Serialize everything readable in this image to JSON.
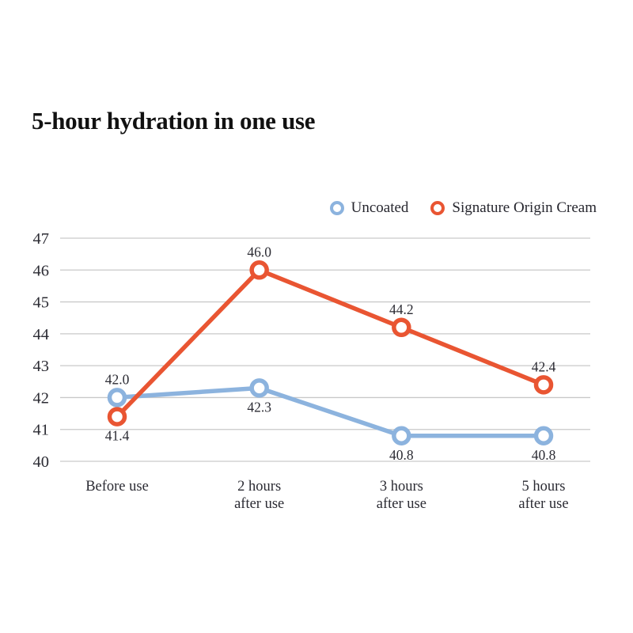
{
  "header": {
    "title": "5-hour hydration in one use"
  },
  "chart_data": {
    "type": "line",
    "title": "5-hour hydration in one use",
    "categories": [
      "Before use",
      "2 hours after use",
      "3 hours after use",
      "5 hours after use"
    ],
    "category_lines": [
      [
        "Before use"
      ],
      [
        "2 hours",
        "after use"
      ],
      [
        "3 hours",
        "after use"
      ],
      [
        "5 hours",
        "after use"
      ]
    ],
    "series": [
      {
        "name": "Uncoated",
        "color": "#8CB3DE",
        "values": [
          42.0,
          42.3,
          40.8,
          40.8
        ],
        "point_labels": [
          "42.0",
          "42.3",
          "40.8",
          "40.8"
        ],
        "label_positions": [
          "above",
          "below",
          "below",
          "below"
        ]
      },
      {
        "name": "Signature Origin Cream",
        "color": "#E95532",
        "values": [
          41.4,
          46.0,
          44.2,
          42.4
        ],
        "point_labels": [
          "41.4",
          "46.0",
          "44.2",
          "42.4"
        ],
        "label_positions": [
          "below",
          "above",
          "above",
          "above"
        ]
      }
    ],
    "xlabel": "",
    "ylabel": "",
    "ylim": [
      40,
      47
    ],
    "yticks": [
      40,
      41,
      42,
      43,
      44,
      45,
      46,
      47
    ],
    "grid": "horizontal",
    "gridline_color": "#c9c9c9",
    "marker_style": "open-circle",
    "legend": {
      "position": "top-right",
      "entries": [
        "Uncoated",
        "Signature Origin Cream"
      ]
    }
  }
}
